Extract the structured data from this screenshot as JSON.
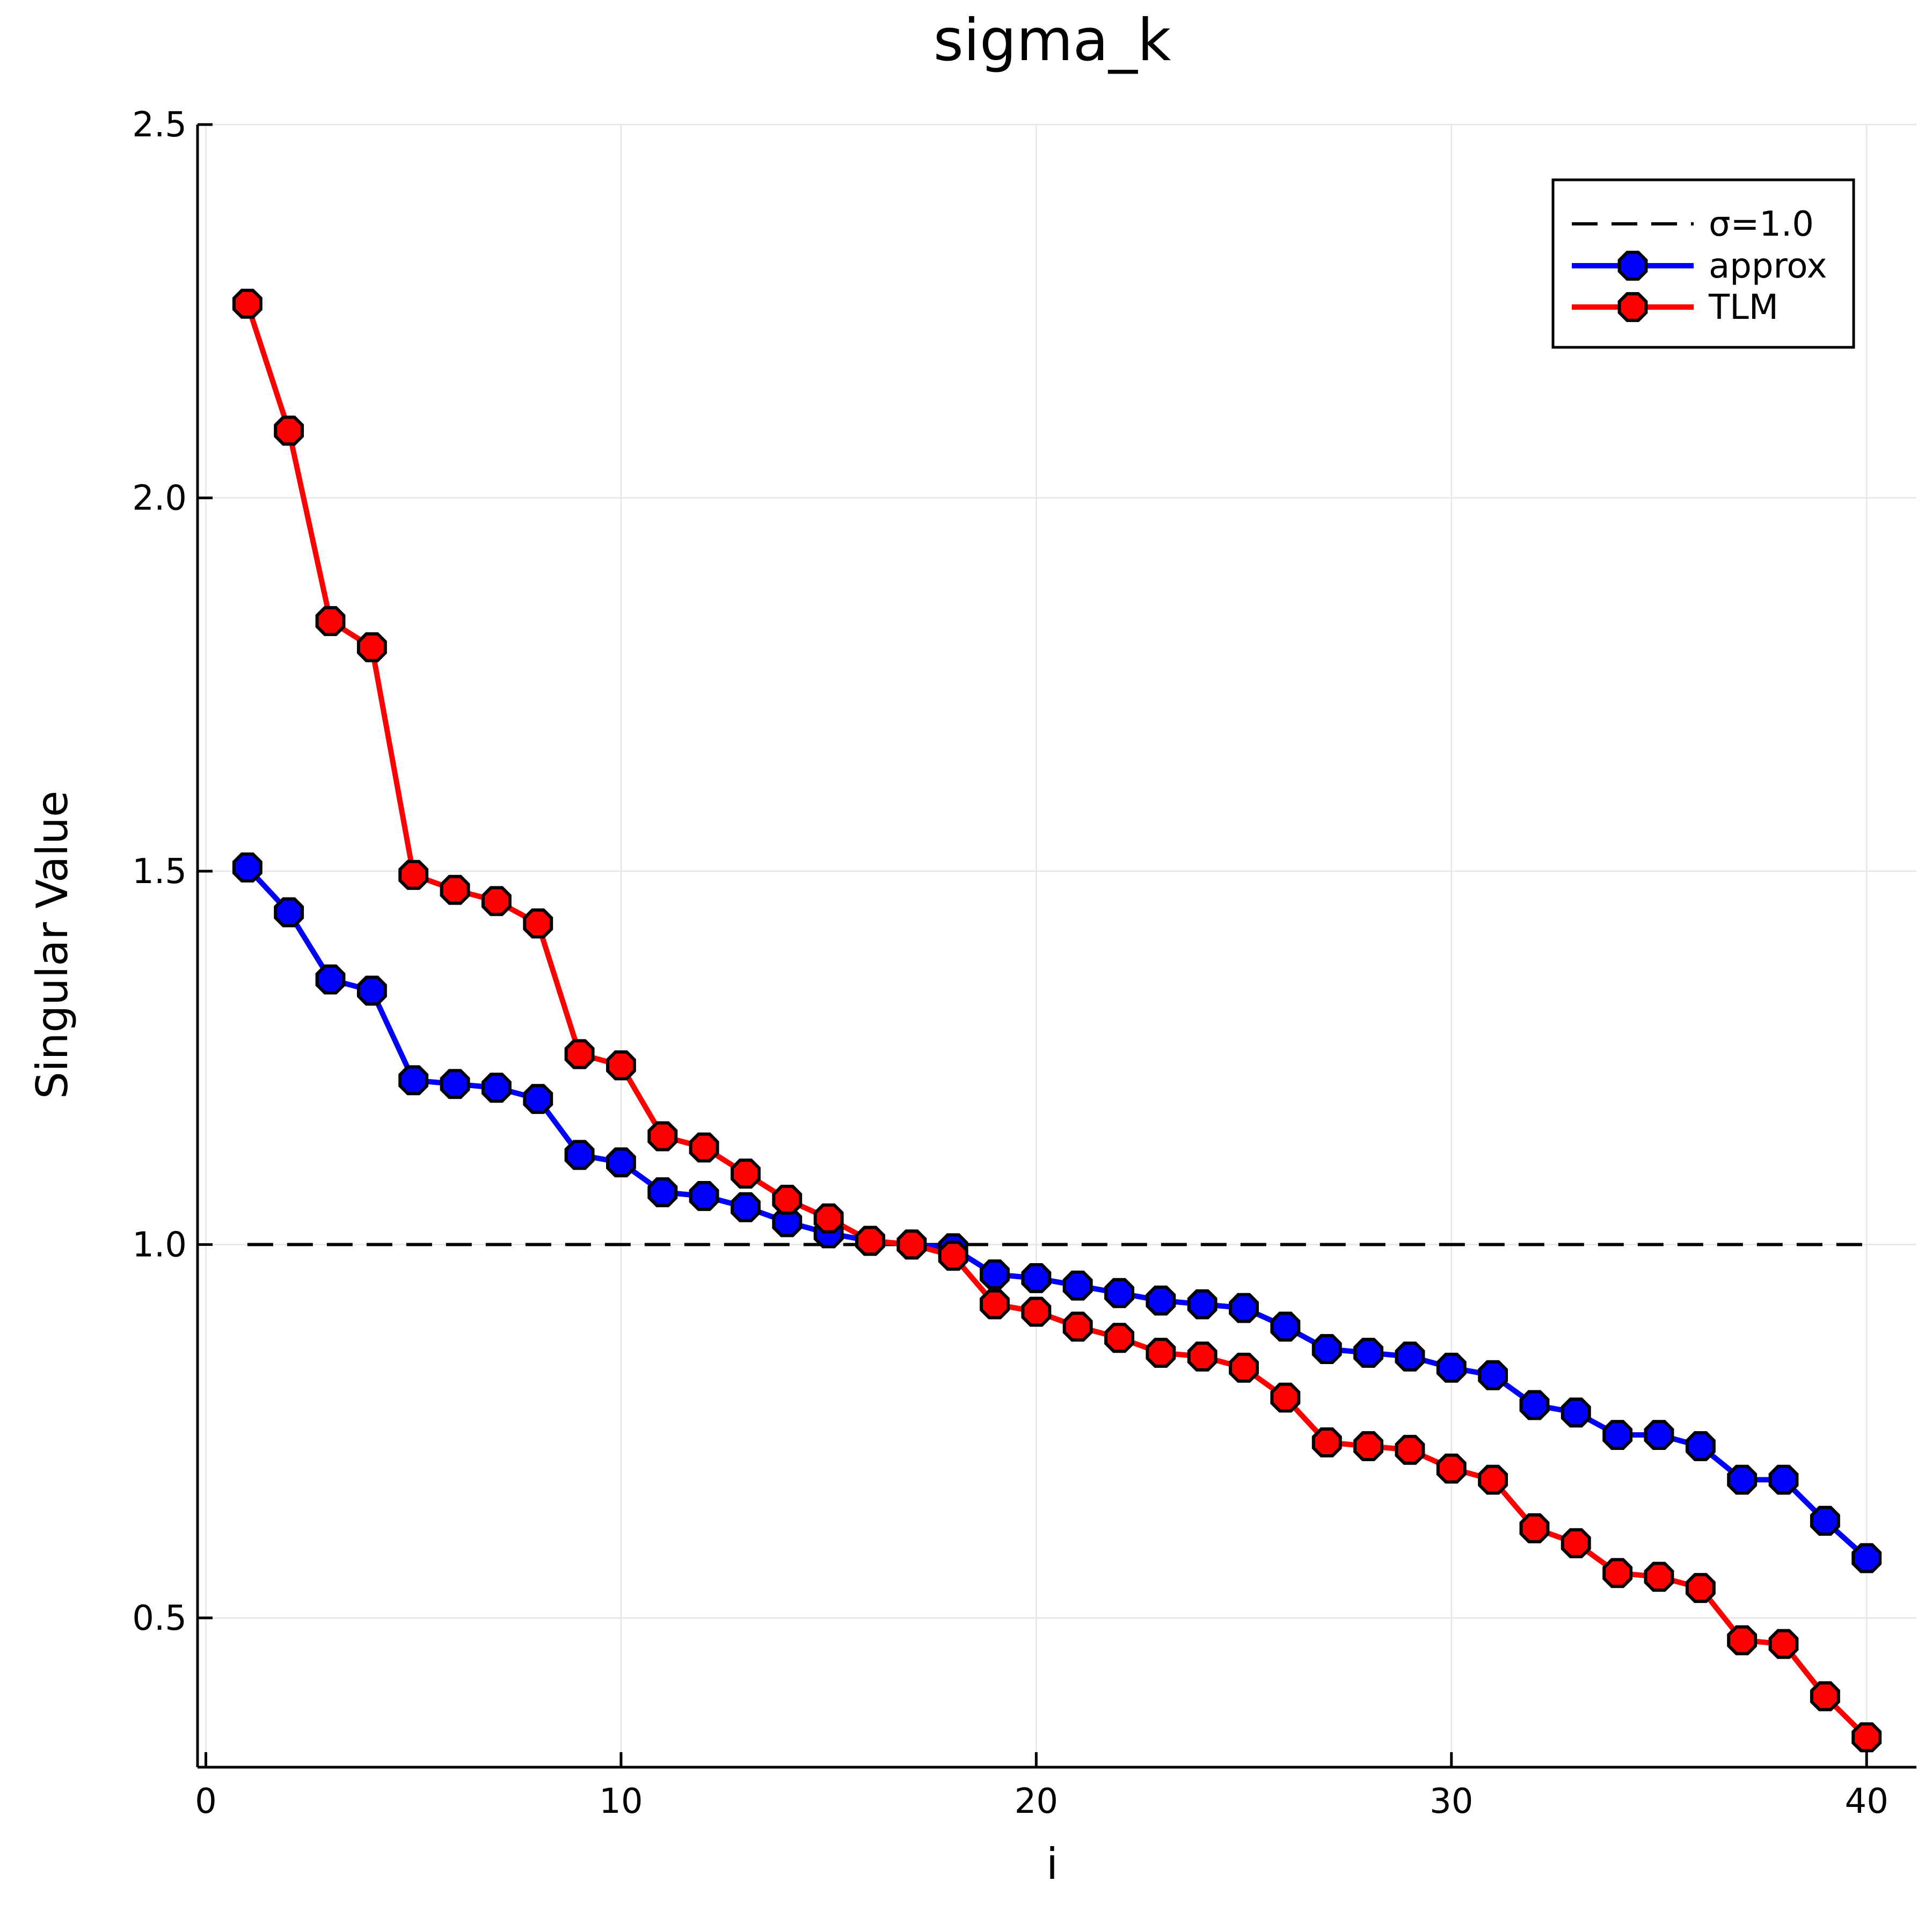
{
  "chart_data": {
    "type": "line",
    "title": "sigma_k",
    "xlabel": "i",
    "ylabel": "Singular Value",
    "xlim": [
      -0.2,
      41.2
    ],
    "ylim": [
      0.3,
      2.5
    ],
    "xticks": [
      0,
      10,
      20,
      30,
      40
    ],
    "xtick_labels": [
      "0",
      "10",
      "20",
      "30",
      "40"
    ],
    "yticks": [
      0.5,
      1.0,
      1.5,
      2.0,
      2.5
    ],
    "ytick_labels": [
      "0.5",
      "1.0",
      "1.5",
      "2.0",
      "2.5"
    ],
    "grid": true,
    "legend_position": "top-right",
    "reference_line": {
      "name": "σ=1.0",
      "y": 1.0,
      "x_range": [
        1,
        40
      ],
      "color": "#000000",
      "style": "dashed"
    },
    "x": [
      1,
      2,
      3,
      4,
      5,
      6,
      7,
      8,
      9,
      10,
      11,
      12,
      13,
      14,
      15,
      16,
      17,
      18,
      19,
      20,
      21,
      22,
      23,
      24,
      25,
      26,
      27,
      28,
      29,
      30,
      31,
      32,
      33,
      34,
      35,
      36,
      37,
      38,
      39,
      40
    ],
    "series": [
      {
        "name": "approx",
        "color": "#0000ff",
        "values": [
          1.505,
          1.445,
          1.355,
          1.34,
          1.22,
          1.215,
          1.21,
          1.195,
          1.12,
          1.11,
          1.07,
          1.065,
          1.05,
          1.03,
          1.015,
          1.005,
          1.0,
          0.995,
          0.96,
          0.955,
          0.945,
          0.935,
          0.925,
          0.92,
          0.915,
          0.89,
          0.86,
          0.855,
          0.85,
          0.835,
          0.825,
          0.785,
          0.775,
          0.745,
          0.745,
          0.73,
          0.685,
          0.685,
          0.63,
          0.58
        ]
      },
      {
        "name": "TLM",
        "color": "#ff0000",
        "values": [
          2.26,
          2.09,
          1.835,
          1.8,
          1.495,
          1.475,
          1.46,
          1.43,
          1.255,
          1.24,
          1.145,
          1.13,
          1.095,
          1.06,
          1.035,
          1.005,
          1.0,
          0.985,
          0.92,
          0.91,
          0.89,
          0.875,
          0.855,
          0.85,
          0.835,
          0.795,
          0.735,
          0.73,
          0.725,
          0.7,
          0.685,
          0.62,
          0.6,
          0.56,
          0.555,
          0.54,
          0.47,
          0.465,
          0.395,
          0.34
        ]
      }
    ]
  }
}
